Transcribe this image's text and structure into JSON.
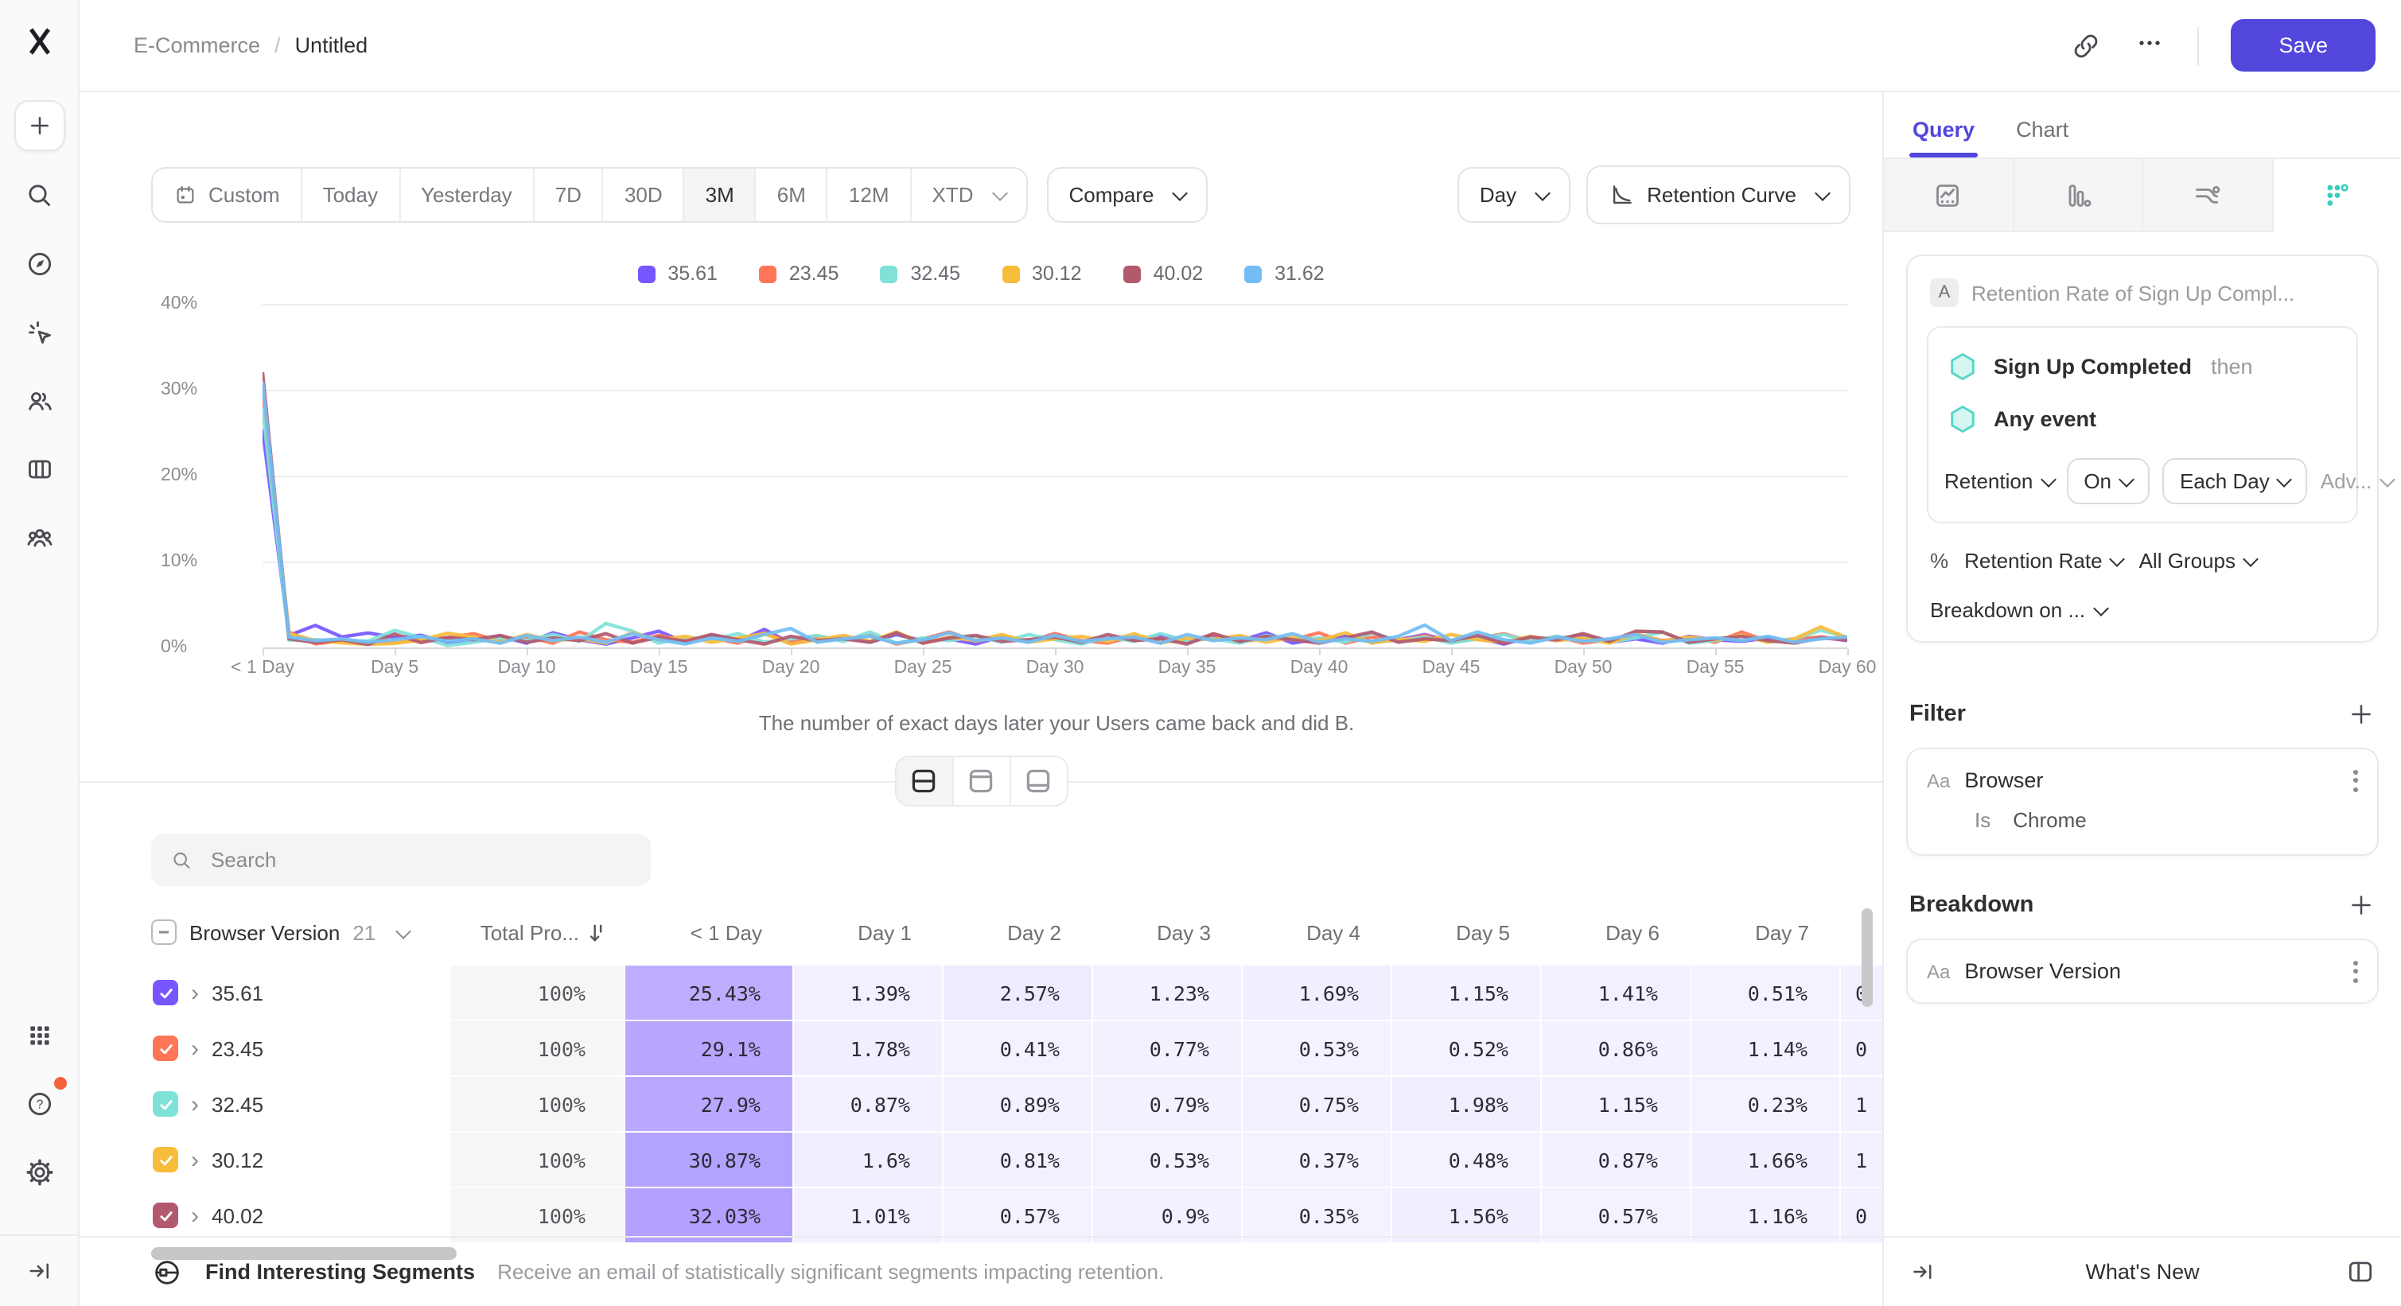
{
  "header": {
    "breadcrumb": {
      "parent": "E-Commerce",
      "separator": "/",
      "current": "Untitled"
    },
    "save_label": "Save"
  },
  "toolbar": {
    "date_ranges": [
      "Custom",
      "Today",
      "Yesterday",
      "7D",
      "30D",
      "3M",
      "6M",
      "12M",
      "XTD"
    ],
    "selected_range": "3M",
    "compare_label": "Compare",
    "granularity_label": "Day",
    "chart_type_label": "Retention Curve"
  },
  "chart_caption": "The number of exact days later your Users came back and did B.",
  "chart_data": {
    "type": "line",
    "title": "",
    "xlabel": "",
    "ylabel": "",
    "ylim": [
      0,
      40
    ],
    "x_days_range": [
      0,
      60
    ],
    "grid": true,
    "legend_position": "top",
    "y_ticks": [
      "0%",
      "10%",
      "20%",
      "30%",
      "40%"
    ],
    "x_ticks": [
      "< 1 Day",
      "Day 5",
      "Day 10",
      "Day 15",
      "Day 20",
      "Day 25",
      "Day 30",
      "Day 35",
      "Day 40",
      "Day 45",
      "Day 50",
      "Day 55",
      "Day 60"
    ],
    "series": [
      {
        "name": "35.61",
        "color": "#7856FF",
        "values": [
          25.43,
          1.39,
          2.57,
          1.23,
          1.69,
          1.15,
          1.41,
          0.51,
          0.8,
          1.3,
          0.5,
          1.7,
          0.9,
          0.4,
          1.1,
          1.9,
          0.6,
          1.4,
          0.7,
          2.1,
          0.5,
          0.9,
          1.2,
          0.6,
          1.5,
          0.8,
          1.0,
          0.4,
          1.3,
          0.7,
          1.6,
          0.5,
          1.1,
          0.9,
          1.4,
          0.6,
          1.2,
          0.8,
          1.7,
          0.5,
          1.0,
          1.3,
          0.6,
          0.9,
          1.5,
          0.7,
          1.1,
          0.4,
          1.2,
          0.8,
          1.4,
          0.6,
          1.0,
          0.5,
          1.3,
          0.9,
          0.7,
          1.1,
          0.6,
          1.2,
          0.8
        ]
      },
      {
        "name": "23.45",
        "color": "#FF7557",
        "values": [
          29.1,
          1.78,
          0.41,
          0.77,
          0.53,
          0.52,
          0.86,
          1.14,
          1.6,
          0.7,
          1.2,
          0.5,
          1.8,
          0.9,
          0.6,
          1.4,
          0.8,
          1.1,
          0.5,
          1.7,
          0.6,
          1.3,
          0.9,
          1.5,
          0.4,
          1.0,
          1.8,
          0.7,
          1.2,
          0.6,
          1.6,
          0.8,
          0.5,
          1.3,
          1.0,
          0.7,
          1.5,
          0.6,
          1.1,
          0.9,
          1.7,
          0.5,
          1.2,
          0.8,
          1.4,
          0.6,
          1.0,
          1.6,
          0.7,
          1.3,
          0.5,
          0.9,
          1.5,
          0.8,
          1.1,
          0.6,
          1.8,
          0.7,
          1.0,
          1.2,
          0.9
        ]
      },
      {
        "name": "32.45",
        "color": "#80E1D9",
        "values": [
          27.9,
          0.87,
          0.89,
          0.79,
          0.75,
          1.98,
          1.15,
          0.23,
          0.6,
          1.1,
          0.8,
          1.5,
          0.7,
          2.8,
          1.9,
          0.5,
          1.2,
          0.9,
          1.6,
          0.6,
          1.0,
          1.4,
          0.7,
          1.8,
          0.5,
          1.1,
          0.8,
          1.3,
          0.6,
          1.5,
          0.9,
          0.4,
          1.2,
          0.7,
          1.6,
          0.8,
          1.0,
          0.5,
          1.4,
          0.9,
          1.1,
          0.6,
          1.7,
          0.8,
          1.2,
          0.5,
          1.0,
          1.5,
          0.7,
          1.3,
          0.9,
          0.6,
          1.1,
          1.8,
          0.5,
          0.8,
          1.4,
          0.7,
          1.0,
          2.0,
          1.2
        ]
      },
      {
        "name": "30.12",
        "color": "#F8BC3B",
        "values": [
          30.87,
          1.6,
          0.81,
          0.53,
          0.37,
          0.48,
          0.87,
          1.66,
          1.2,
          0.6,
          1.5,
          0.8,
          1.0,
          0.5,
          1.7,
          0.9,
          1.3,
          0.6,
          1.1,
          1.6,
          0.4,
          0.9,
          1.4,
          0.7,
          1.8,
          0.5,
          1.2,
          0.8,
          1.5,
          0.6,
          1.0,
          1.3,
          0.7,
          1.6,
          0.5,
          1.1,
          0.9,
          1.4,
          0.6,
          1.2,
          0.8,
          1.7,
          0.5,
          1.0,
          0.7,
          1.5,
          0.9,
          0.6,
          1.3,
          0.8,
          1.1,
          0.5,
          1.6,
          0.7,
          1.2,
          0.9,
          1.4,
          0.6,
          1.0,
          2.4,
          1.1
        ]
      },
      {
        "name": "40.02",
        "color": "#B2596E",
        "values": [
          32.03,
          1.01,
          0.57,
          0.9,
          0.35,
          1.56,
          0.57,
          1.16,
          0.9,
          1.4,
          0.6,
          1.1,
          0.8,
          1.6,
          0.5,
          1.2,
          0.7,
          1.5,
          0.9,
          0.4,
          1.3,
          0.8,
          1.0,
          0.6,
          1.7,
          0.5,
          1.1,
          1.4,
          0.7,
          0.9,
          1.2,
          0.6,
          1.5,
          0.8,
          1.0,
          0.4,
          1.6,
          0.7,
          1.3,
          0.9,
          0.5,
          1.1,
          1.8,
          0.6,
          1.0,
          0.8,
          1.4,
          0.5,
          1.2,
          0.9,
          1.6,
          0.7,
          1.9,
          1.8,
          0.6,
          1.0,
          1.3,
          0.8,
          0.5,
          1.1,
          0.9
        ]
      },
      {
        "name": "31.62",
        "color": "#72BEF4",
        "values": [
          31.0,
          1.2,
          0.8,
          1.0,
          0.6,
          0.9,
          1.3,
          0.7,
          1.0,
          0.5,
          1.4,
          0.8,
          1.2,
          0.6,
          1.6,
          0.9,
          0.4,
          1.1,
          0.7,
          1.5,
          2.2,
          0.6,
          1.0,
          1.3,
          0.5,
          0.9,
          1.7,
          0.8,
          1.1,
          0.6,
          1.4,
          0.7,
          1.0,
          1.2,
          0.5,
          1.5,
          0.8,
          1.1,
          0.9,
          1.6,
          0.6,
          1.0,
          0.7,
          1.3,
          2.6,
          0.8,
          1.8,
          0.9,
          0.5,
          1.2,
          0.7,
          1.0,
          1.5,
          0.6,
          0.9,
          1.1,
          0.8,
          1.3,
          0.6,
          1.0,
          1.2
        ]
      }
    ]
  },
  "search": {
    "placeholder": "Search"
  },
  "table": {
    "group_column": "Browser Version",
    "group_count": "21",
    "total_column": "Total Pro...",
    "day_columns": [
      "< 1 Day",
      "Day 1",
      "Day 2",
      "Day 3",
      "Day 4",
      "Day 5",
      "Day 6",
      "Day 7"
    ],
    "rows": [
      {
        "label": "35.61",
        "color": "#7856FF",
        "total": "100%",
        "values": [
          "25.43%",
          "1.39%",
          "2.57%",
          "1.23%",
          "1.69%",
          "1.15%",
          "1.41%",
          "0.51%"
        ],
        "clipped": "0"
      },
      {
        "label": "23.45",
        "color": "#FF7557",
        "total": "100%",
        "values": [
          "29.1%",
          "1.78%",
          "0.41%",
          "0.77%",
          "0.53%",
          "0.52%",
          "0.86%",
          "1.14%"
        ],
        "clipped": "0"
      },
      {
        "label": "32.45",
        "color": "#80E1D9",
        "total": "100%",
        "values": [
          "27.9%",
          "0.87%",
          "0.89%",
          "0.79%",
          "0.75%",
          "1.98%",
          "1.15%",
          "0.23%"
        ],
        "clipped": "1"
      },
      {
        "label": "30.12",
        "color": "#F8BC3B",
        "total": "100%",
        "values": [
          "30.87%",
          "1.6%",
          "0.81%",
          "0.53%",
          "0.37%",
          "0.48%",
          "0.87%",
          "1.66%"
        ],
        "clipped": "1"
      },
      {
        "label": "40.02",
        "color": "#B2596E",
        "total": "100%",
        "values": [
          "32.03%",
          "1.01%",
          "0.57%",
          "0.9%",
          "0.35%",
          "1.56%",
          "0.57%",
          "1.16%"
        ],
        "clipped": "0"
      }
    ]
  },
  "footer": {
    "title": "Find Interesting Segments",
    "description": "Receive an email of statistically significant segments impacting retention."
  },
  "panel": {
    "tabs": {
      "query": "Query",
      "chart": "Chart"
    },
    "query": {
      "badge": "A",
      "title": "Retention Rate of Sign Up Compl...",
      "event_a": "Sign Up Completed",
      "then_label": "then",
      "event_b": "Any event",
      "retention_label": "Retention",
      "on_label": "On",
      "each_day_label": "Each Day",
      "advanced_label": "Adv...",
      "measure_prefix": "%",
      "measure_label": "Retention Rate",
      "groups_label": "All Groups",
      "breakdown_on_label": "Breakdown on ..."
    },
    "filter": {
      "heading": "Filter",
      "type_label": "Aa",
      "property": "Browser",
      "operator": "Is",
      "value": "Chrome"
    },
    "breakdown": {
      "heading": "Breakdown",
      "type_label": "Aa",
      "property": "Browser Version"
    },
    "whats_new": "What's New"
  },
  "colors": {
    "accent_purple": "#5246db",
    "heat_base": "#7856FF",
    "badge_orange": "#f4603e",
    "teal_icon": "#38cdbd"
  }
}
